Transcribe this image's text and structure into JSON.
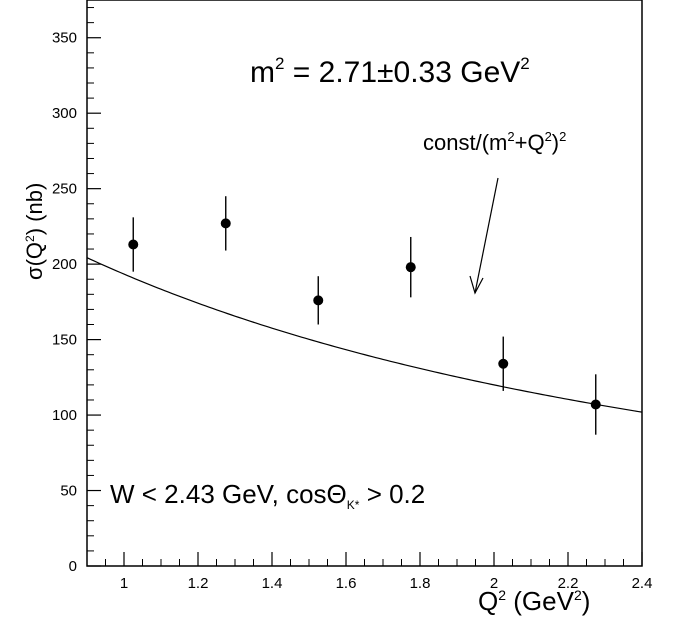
{
  "chart_data": {
    "type": "scatter",
    "xlabel": "Q",
    "xlabel_sup": "2",
    "xlabel_unit": "(GeV",
    "xlabel_unit_sup": "2",
    "xlabel_unit_end": ")",
    "ylabel": "σ(Q",
    "ylabel_sup": "2",
    "ylabel_end": ") (nb)",
    "xlim": [
      0.9,
      2.4
    ],
    "ylim": [
      0,
      375
    ],
    "x_ticks": [
      1,
      1.2,
      1.4,
      1.6,
      1.8,
      2,
      2.2,
      2.4
    ],
    "x_tick_labels": [
      "1",
      "1.2",
      "1.4",
      "1.6",
      "1.8",
      "2",
      "2.2",
      "2.4"
    ],
    "y_ticks": [
      0,
      50,
      100,
      150,
      200,
      250,
      300,
      350
    ],
    "y_tick_labels": [
      "0",
      "50",
      "100",
      "150",
      "200",
      "250",
      "300",
      "350"
    ],
    "points": [
      {
        "x": 1.025,
        "y": 213,
        "err": 18
      },
      {
        "x": 1.275,
        "y": 227,
        "err": 18
      },
      {
        "x": 1.525,
        "y": 176,
        "err": 16
      },
      {
        "x": 1.775,
        "y": 198,
        "err": 20
      },
      {
        "x": 2.025,
        "y": 134,
        "err": 18
      },
      {
        "x": 2.275,
        "y": 107,
        "err": 20
      }
    ],
    "fit": {
      "m2": 2.71,
      "const": 2662,
      "label_main": "const/(m",
      "label_sup1": "2",
      "label_mid": "+Q",
      "label_sup2": "2",
      "label_close": ")",
      "label_sup3": "2"
    },
    "annotation_m2": {
      "pre": "m",
      "sup": "2",
      "mid": " = 2.71±0.33 GeV",
      "sup2": "2"
    },
    "annotation_cuts": {
      "pre": "W < 2.43 GeV, cosΘ",
      "sub": "K*",
      "post": " > 0.2"
    }
  }
}
